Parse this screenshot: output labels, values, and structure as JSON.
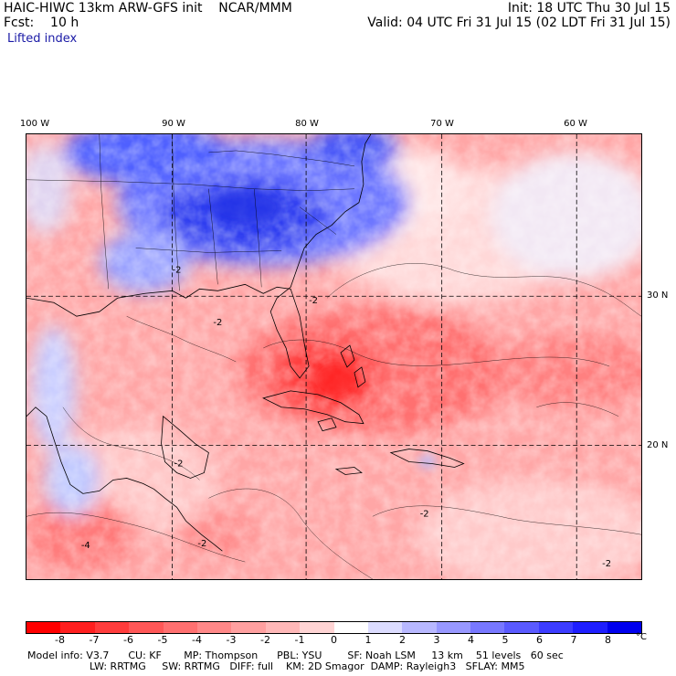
{
  "header": {
    "title": "HAIC-HIWC 13km ARW-GFS init    NCAR/MMM",
    "forecast": "Fcst:    10 h",
    "field": "Lifted index",
    "init": "Init: 18 UTC Thu 30 Jul 15",
    "valid": "Valid: 04 UTC Fri 31 Jul 15 (02 LDT Fri 31 Jul 15)"
  },
  "map": {
    "lon_labels": [
      "100 W",
      "90 W",
      "80 W",
      "70 W",
      "60 W"
    ],
    "lat_labels": [
      "30 N",
      "20 N"
    ],
    "contour_labels": [
      "-2",
      "-2",
      "-2",
      "-2",
      "-2",
      "-2",
      "-4",
      "-2"
    ]
  },
  "colorbar": {
    "labels": [
      "-8",
      "-7",
      "-6",
      "-5",
      "-4",
      "-3",
      "-2",
      "-1",
      "0",
      "1",
      "2",
      "3",
      "4",
      "5",
      "6",
      "7",
      "8"
    ],
    "units": "°C",
    "colors": [
      "#ff0000",
      "#ff1f1f",
      "#ff3c3c",
      "#ff5757",
      "#ff7070",
      "#ff8888",
      "#ffa0a0",
      "#ffb8b8",
      "#ffd4d4",
      "#ffffff",
      "#dcdcff",
      "#b8b8ff",
      "#9898ff",
      "#7878ff",
      "#5a5aff",
      "#3c3cff",
      "#1e1eff",
      "#0000ee"
    ]
  },
  "info": {
    "line1": "Model info: V3.7      CU: KF       MP: Thompson      PBL: YSU        SF: Noah LSM     13 km    51 levels   60 sec",
    "line2": "LW: RRTMG     SW: RRTMG   DIFF: full    KM: 2D Smagor  DAMP: Rayleigh3   SFLAY: MM5"
  }
}
